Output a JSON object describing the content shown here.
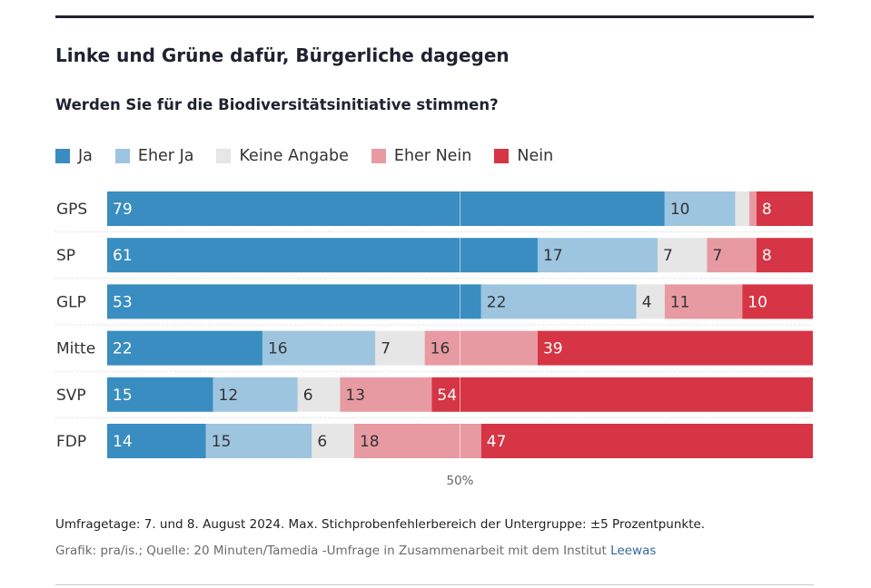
{
  "title": "Linke und Grüne dafür, Bürgerliche dagegen",
  "subtitle": "Werden Sie für die Biodiversitätsinitiative stimmen?",
  "legend": [
    {
      "label": "Ja",
      "color": "#3a8dc0"
    },
    {
      "label": "Eher Ja",
      "color": "#9ec5df"
    },
    {
      "label": "Keine Angabe",
      "color": "#e6e6e6"
    },
    {
      "label": "Eher Nein",
      "color": "#e89aa2"
    },
    {
      "label": "Nein",
      "color": "#d63545"
    }
  ],
  "chart_data": {
    "type": "bar",
    "orientation": "horizontal",
    "stacked": true,
    "categories": [
      "GPS",
      "SP",
      "GLP",
      "Mitte",
      "SVP",
      "FDP"
    ],
    "series": [
      {
        "name": "Ja",
        "color": "#3a8dc0",
        "values": [
          79,
          61,
          53,
          22,
          15,
          14
        ]
      },
      {
        "name": "Eher Ja",
        "color": "#9ec5df",
        "values": [
          10,
          17,
          22,
          16,
          12,
          15
        ]
      },
      {
        "name": "Keine Angabe",
        "color": "#e6e6e6",
        "values": [
          2,
          7,
          4,
          7,
          6,
          6
        ]
      },
      {
        "name": "Eher Nein",
        "color": "#e89aa2",
        "values": [
          1,
          7,
          11,
          16,
          13,
          18
        ]
      },
      {
        "name": "Nein",
        "color": "#d63545",
        "values": [
          8,
          8,
          10,
          39,
          54,
          47
        ]
      }
    ],
    "value_labels": [
      [
        "79",
        "10",
        "",
        "",
        "8"
      ],
      [
        "61",
        "17",
        "7",
        "7",
        "8"
      ],
      [
        "53",
        "22",
        "4",
        "11",
        "10"
      ],
      [
        "22",
        "16",
        "7",
        "16",
        "39"
      ],
      [
        "15",
        "12",
        "6",
        "13",
        "54"
      ],
      [
        "14",
        "15",
        "6",
        "18",
        "47"
      ]
    ],
    "xlim": [
      0,
      100
    ],
    "reference_line": {
      "value": 50,
      "label": "50%"
    }
  },
  "footnote": "Umfragetage: 7. und 8. August 2024. Max. Stichprobenfehlerbereich der Untergruppe: ±5 Prozentpunkte.",
  "source": {
    "text": "Grafik: pra/is.; Quelle: 20 Minuten/Tamedia -Umfrage in Zusammenarbeit mit dem Institut ",
    "link_text": "Leewas"
  }
}
